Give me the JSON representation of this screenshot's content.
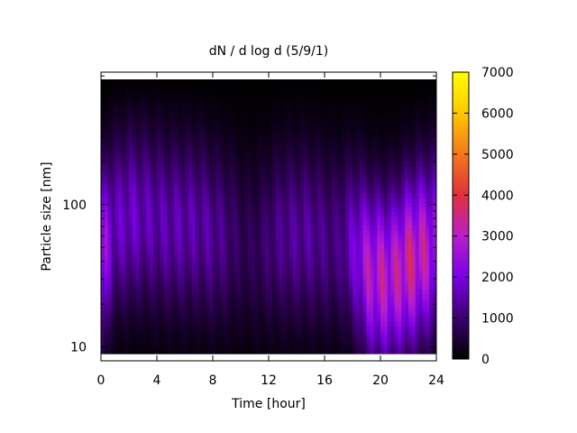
{
  "chart_data": {
    "type": "heatmap",
    "title": "dN / d log d (5/9/1)",
    "xlabel": "Time [hour]",
    "ylabel": "Particle size [nm]",
    "xlim": [
      0,
      24
    ],
    "x_ticks": [
      0,
      4,
      8,
      12,
      16,
      20,
      24
    ],
    "y_scale": "log",
    "ylim": [
      8,
      850
    ],
    "y_ticks": [
      10,
      100
    ],
    "colorbar": {
      "range": [
        0,
        7000
      ],
      "ticks": [
        0,
        1000,
        2000,
        3000,
        4000,
        5000,
        6000,
        7000
      ],
      "colormap": [
        "#000000",
        "#3d0070",
        "#7a00e6",
        "#b81fc8",
        "#e0303a",
        "#f2781a",
        "#ffc800",
        "#ffff00"
      ]
    },
    "lower_size_edge_nm": 9.3,
    "time_profile": {
      "x": [
        0,
        1,
        2,
        3,
        4,
        5,
        6,
        7,
        8,
        9,
        10,
        11,
        12,
        13,
        14,
        15,
        16,
        17,
        18,
        19,
        20,
        21,
        22,
        23,
        24
      ],
      "mode_diameter_nm": [
        40,
        70,
        80,
        80,
        75,
        70,
        70,
        70,
        60,
        60,
        55,
        50,
        55,
        60,
        60,
        60,
        55,
        55,
        50,
        35,
        30,
        32,
        38,
        45,
        50
      ],
      "peak_value": [
        3200,
        1900,
        2100,
        1900,
        1800,
        1800,
        1800,
        1700,
        1600,
        1300,
        900,
        900,
        1200,
        1500,
        1600,
        1600,
        1400,
        1300,
        2100,
        3300,
        3600,
        3500,
        4000,
        3700,
        3000
      ]
    },
    "grid": false,
    "legend": "colorbar-right"
  }
}
